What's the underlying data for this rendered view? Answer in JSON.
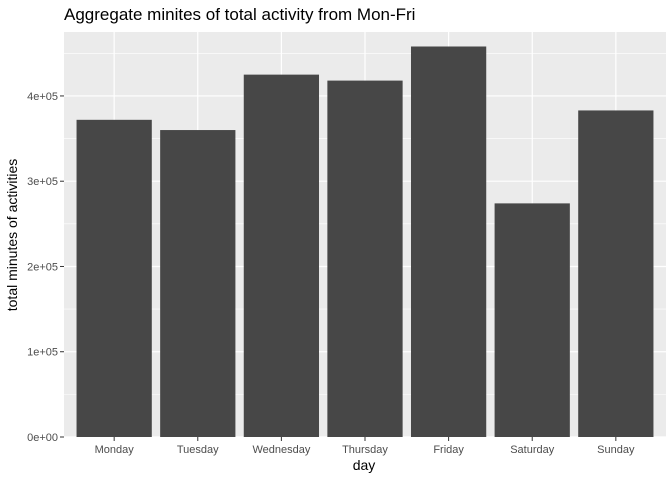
{
  "chart_data": {
    "type": "bar",
    "title": "Aggregate minites of total activity from Mon-Fri",
    "xlabel": "day",
    "ylabel": "total minutes of activities",
    "categories": [
      "Monday",
      "Tuesday",
      "Wednesday",
      "Thursday",
      "Friday",
      "Saturday",
      "Sunday"
    ],
    "values": [
      372000,
      360000,
      425000,
      418000,
      458000,
      274000,
      383000
    ],
    "ylim": [
      0,
      475000
    ],
    "yticks": [
      0,
      100000,
      200000,
      300000,
      400000
    ],
    "ytick_labels": [
      "0e+00",
      "1e+05",
      "2e+05",
      "3e+05",
      "4e+05"
    ],
    "grid": true,
    "legend": "none",
    "colors": {
      "panel_background": "#ebebeb",
      "grid_major": "#ffffff",
      "bar_fill": "#474747",
      "tick_text": "#4d4d4d",
      "tick_mark": "#333333"
    }
  }
}
